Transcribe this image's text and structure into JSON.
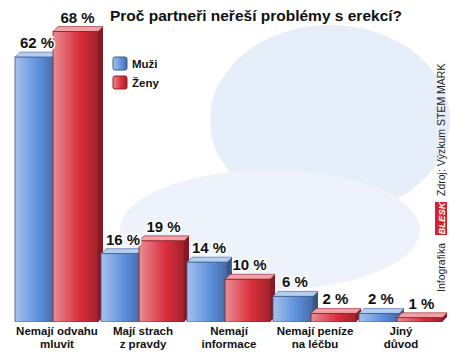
{
  "chart_data": {
    "type": "bar",
    "title": "Proč partneři neřeší problémy s erekcí?",
    "annotations": [
      "Infografika",
      "BLESK",
      "Zdroj: Výzkum STEM MARK"
    ],
    "categories": [
      "Nemají odvahu\nmluvit",
      "Mají strach\nz pravdy",
      "Nemají\ninformace",
      "Nemají peníze\nna léčbu",
      "Jiný\ndůvod"
    ],
    "series": [
      {
        "name": "Muži",
        "color": "#5b8fdb",
        "values": [
          62,
          16,
          14,
          6,
          2
        ],
        "value_labels": [
          "62 %",
          "16 %",
          "14 %",
          "6 %",
          "2 %"
        ]
      },
      {
        "name": "Ženy",
        "color": "#d92d3a",
        "values": [
          68,
          19,
          10,
          2,
          1
        ],
        "value_labels": [
          "68 %",
          "19 %",
          "10 %",
          "2 %",
          "1 %"
        ]
      }
    ],
    "ylim": [
      0,
      70
    ],
    "tick_labels": false,
    "grid": false,
    "legend": "top-left",
    "data_labels": true
  }
}
